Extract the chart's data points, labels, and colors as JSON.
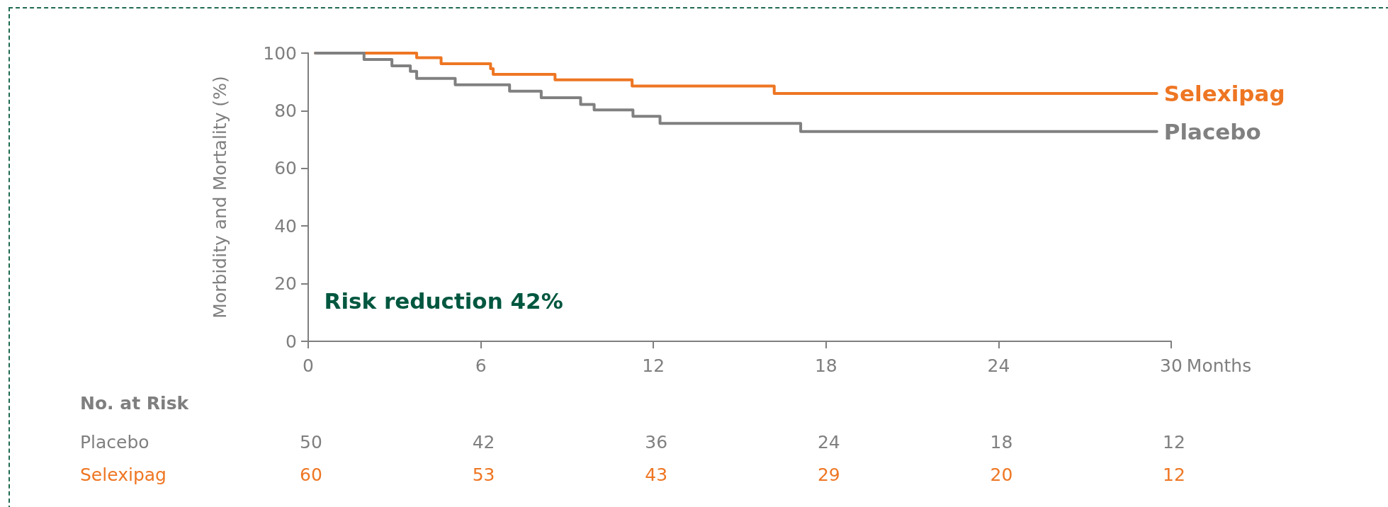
{
  "chart_data": {
    "type": "step",
    "xlabel": "Months",
    "ylabel": "Morbidity and Mortality (%)",
    "xlim": [
      0,
      30
    ],
    "xticks": [
      0,
      6,
      12,
      18,
      24,
      30
    ],
    "ylim": [
      0,
      100
    ],
    "yticks": [
      0,
      20,
      40,
      60,
      80,
      100
    ],
    "grid": false,
    "legend": false,
    "series": [
      {
        "name": "Selexipag",
        "color": "#ee7623",
        "x": [
          0.25,
          3.77,
          4.62,
          6.34,
          6.43,
          8.58,
          11.26,
          16.2,
          29.5
        ],
        "values": [
          100,
          98.4,
          96.3,
          94.6,
          92.6,
          90.7,
          88.6,
          86.0,
          86.0
        ]
      },
      {
        "name": "Placebo",
        "color": "#808080",
        "x": [
          0.25,
          1.94,
          2.91,
          3.55,
          3.77,
          5.11,
          7.0,
          8.1,
          9.47,
          9.94,
          11.29,
          12.23,
          17.12,
          29.5
        ],
        "values": [
          100,
          97.8,
          95.6,
          93.7,
          91.2,
          89.0,
          86.8,
          84.5,
          82.2,
          80.3,
          78.1,
          75.6,
          72.8,
          72.8
        ]
      }
    ],
    "annotations": [
      "Risk reduction 42%",
      "No. at Risk",
      "Placebo",
      "50",
      "42",
      "36",
      "24",
      "18",
      "12",
      "Selexipag",
      "60",
      "53",
      "43",
      "29",
      "20",
      "12"
    ]
  }
}
